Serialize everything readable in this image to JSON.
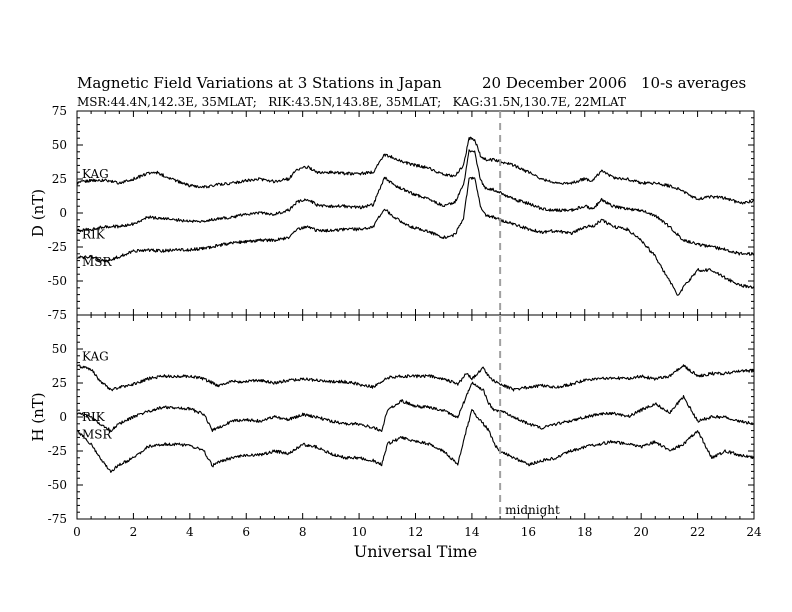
{
  "header": {
    "title": "Magnetic Field Variations at 3 Stations in Japan",
    "date": "20 December 2006",
    "averaging": "10-s averages",
    "subtitle": "MSR:44.4N,142.3E, 35MLAT;   RIK:43.5N,143.8E, 35MLAT;   KAG:31.5N,130.7E, 22MLAT"
  },
  "annotation": {
    "midnight": "midnight",
    "midnight_ut": 15
  },
  "chart_data": [
    {
      "type": "line",
      "panel": "D",
      "ylabel": "D (nT)",
      "ylim": [
        -75,
        75
      ],
      "yticks": [
        75,
        50,
        25,
        0,
        -25,
        -50,
        -75
      ],
      "xlim": [
        0,
        24
      ],
      "grid": false,
      "series": [
        {
          "name": "KAG",
          "x": [
            0,
            0.5,
            1,
            1.5,
            2,
            2.5,
            2.8,
            3.5,
            4,
            4.5,
            5,
            5.5,
            6,
            6.5,
            7,
            7.5,
            7.8,
            8.2,
            8.5,
            9,
            9.5,
            10,
            10.5,
            10.9,
            11.3,
            11.8,
            12.5,
            13,
            13.4,
            13.7,
            13.9,
            14.1,
            14.3,
            14.5,
            14.8,
            15,
            15.5,
            16,
            16.5,
            17,
            17.5,
            18,
            18.3,
            18.6,
            19,
            19.5,
            20,
            20.5,
            21,
            21.5,
            22,
            22.5,
            23,
            23.5,
            24
          ],
          "values": [
            22,
            24,
            24,
            22,
            25,
            29,
            30,
            24,
            20,
            19,
            21,
            22,
            24,
            25,
            23,
            25,
            32,
            34,
            30,
            30,
            29,
            29,
            30,
            43,
            40,
            36,
            33,
            28,
            27,
            35,
            55,
            54,
            42,
            39,
            39,
            38,
            35,
            30,
            25,
            22,
            22,
            25,
            24,
            31,
            26,
            25,
            22,
            22,
            20,
            16,
            10,
            12,
            11,
            7,
            9
          ]
        },
        {
          "name": "RIK",
          "x": [
            0,
            0.5,
            1,
            1.5,
            2,
            2.5,
            3,
            3.5,
            4,
            4.5,
            5,
            5.5,
            6,
            6.5,
            7,
            7.5,
            7.8,
            8.2,
            8.5,
            9,
            9.5,
            10,
            10.5,
            10.9,
            11.3,
            11.8,
            12.5,
            13,
            13.4,
            13.7,
            13.9,
            14.1,
            14.3,
            14.5,
            14.8,
            15,
            15.5,
            16,
            16.5,
            17,
            17.5,
            18,
            18.3,
            18.6,
            19,
            19.5,
            20,
            20.5,
            21,
            21.5,
            22,
            22.5,
            23,
            23.5,
            24
          ],
          "values": [
            -13,
            -12,
            -10,
            -10,
            -8,
            -3,
            -4,
            -5,
            -6,
            -6,
            -4,
            -3,
            -1,
            0,
            -1,
            2,
            8,
            10,
            6,
            5,
            5,
            4,
            6,
            26,
            20,
            15,
            10,
            5,
            8,
            20,
            46,
            45,
            24,
            18,
            17,
            15,
            10,
            7,
            3,
            2,
            2,
            5,
            3,
            10,
            5,
            3,
            2,
            -2,
            -10,
            -20,
            -23,
            -25,
            -27,
            -30,
            -30
          ]
        },
        {
          "name": "MSR",
          "x": [
            0,
            0.5,
            1,
            1.5,
            2,
            2.5,
            3,
            3.5,
            4,
            4.5,
            5,
            5.5,
            6,
            6.5,
            7,
            7.5,
            7.8,
            8.2,
            8.5,
            9,
            9.5,
            10,
            10.5,
            10.9,
            11.3,
            11.8,
            12.5,
            13,
            13.4,
            13.7,
            13.9,
            14.1,
            14.3,
            14.5,
            14.8,
            15,
            15.5,
            16,
            16.5,
            17,
            17.5,
            18,
            18.3,
            18.6,
            19,
            19.5,
            20,
            20.5,
            21,
            21.3,
            21.6,
            22,
            22.5,
            23,
            23.5,
            24
          ],
          "values": [
            -33,
            -32,
            -36,
            -32,
            -28,
            -27,
            -28,
            -27,
            -27,
            -26,
            -24,
            -22,
            -21,
            -20,
            -20,
            -18,
            -12,
            -10,
            -13,
            -13,
            -12,
            -12,
            -10,
            3,
            -4,
            -10,
            -14,
            -18,
            -16,
            -4,
            25,
            26,
            5,
            -2,
            -3,
            -5,
            -8,
            -12,
            -14,
            -13,
            -15,
            -10,
            -10,
            -5,
            -10,
            -12,
            -20,
            -32,
            -50,
            -60,
            -52,
            -42,
            -42,
            -48,
            -53,
            -55
          ]
        }
      ]
    },
    {
      "type": "line",
      "panel": "H",
      "ylabel": "H (nT)",
      "ylim": [
        -75,
        75
      ],
      "yticks": [
        50,
        25,
        0,
        -25,
        -50,
        -75
      ],
      "xlim": [
        0,
        24
      ],
      "xticks": [
        0,
        2,
        4,
        6,
        8,
        10,
        12,
        14,
        16,
        18,
        20,
        22,
        24
      ],
      "xlabel": "Universal Time",
      "grid": false,
      "series": [
        {
          "name": "KAG",
          "x": [
            0,
            0.5,
            0.8,
            1.2,
            1.5,
            2,
            2.5,
            3,
            3.5,
            4,
            4.5,
            5,
            5.5,
            6,
            6.5,
            7,
            7.5,
            8,
            8.5,
            9,
            9.5,
            10,
            10.5,
            11,
            11.5,
            12,
            12.5,
            13,
            13.5,
            13.8,
            14,
            14.2,
            14.4,
            14.6,
            14.8,
            15,
            15.5,
            16,
            16.5,
            17,
            17.5,
            18,
            18.5,
            19,
            19.5,
            20,
            20.5,
            21,
            21.5,
            22,
            22.5,
            23,
            23.5,
            24
          ],
          "values": [
            38,
            35,
            27,
            20,
            22,
            24,
            28,
            30,
            30,
            30,
            28,
            23,
            26,
            26,
            27,
            25,
            27,
            28,
            27,
            26,
            26,
            24,
            22,
            29,
            30,
            30,
            30,
            28,
            24,
            32,
            28,
            32,
            36,
            30,
            26,
            24,
            20,
            22,
            23,
            22,
            24,
            27,
            28,
            29,
            28,
            30,
            28,
            30,
            38,
            30,
            32,
            32,
            34,
            34
          ]
        },
        {
          "name": "RIK",
          "x": [
            0,
            0.5,
            0.8,
            1.2,
            1.5,
            2,
            2.5,
            3,
            3.5,
            4,
            4.5,
            4.8,
            5,
            5.5,
            6,
            6.5,
            7,
            7.5,
            8,
            8.5,
            9,
            9.5,
            10,
            10.5,
            10.8,
            11,
            11.5,
            12,
            12.5,
            13,
            13.5,
            13.8,
            14,
            14.2,
            14.4,
            14.6,
            14.8,
            15,
            15.5,
            16,
            16.5,
            17,
            17.5,
            18,
            18.5,
            19,
            19.5,
            20,
            20.5,
            21,
            21.5,
            22,
            22.5,
            23,
            23.5,
            24
          ],
          "values": [
            3,
            0,
            -5,
            -10,
            -5,
            0,
            4,
            7,
            7,
            6,
            2,
            -10,
            -8,
            -3,
            -2,
            -3,
            0,
            -2,
            2,
            0,
            -3,
            -5,
            -5,
            -8,
            -10,
            5,
            12,
            8,
            7,
            5,
            0,
            15,
            25,
            22,
            20,
            10,
            5,
            5,
            0,
            -5,
            -8,
            -5,
            -3,
            0,
            2,
            3,
            0,
            5,
            10,
            3,
            15,
            -3,
            0,
            0,
            -3,
            -5
          ]
        },
        {
          "name": "MSR",
          "x": [
            0,
            0.5,
            0.8,
            1.2,
            1.5,
            2,
            2.5,
            3,
            3.5,
            4,
            4.5,
            4.8,
            5,
            5.5,
            6,
            6.5,
            7,
            7.5,
            8,
            8.5,
            9,
            9.5,
            10,
            10.5,
            10.8,
            11,
            11.5,
            12,
            12.5,
            13,
            13.5,
            13.8,
            14,
            14.2,
            14.4,
            14.6,
            14.8,
            15,
            15.5,
            16,
            16.5,
            17,
            17.5,
            18,
            18.5,
            19,
            19.5,
            20,
            20.5,
            21,
            21.5,
            22,
            22.5,
            23,
            23.5,
            24
          ],
          "values": [
            -10,
            -20,
            -30,
            -40,
            -35,
            -30,
            -22,
            -20,
            -20,
            -21,
            -25,
            -36,
            -33,
            -30,
            -28,
            -28,
            -25,
            -27,
            -20,
            -22,
            -27,
            -30,
            -30,
            -32,
            -35,
            -20,
            -15,
            -18,
            -20,
            -25,
            -35,
            -10,
            5,
            0,
            -5,
            -10,
            -20,
            -25,
            -30,
            -35,
            -32,
            -30,
            -25,
            -22,
            -20,
            -18,
            -20,
            -22,
            -18,
            -25,
            -20,
            -10,
            -30,
            -25,
            -28,
            -30
          ]
        }
      ]
    }
  ]
}
